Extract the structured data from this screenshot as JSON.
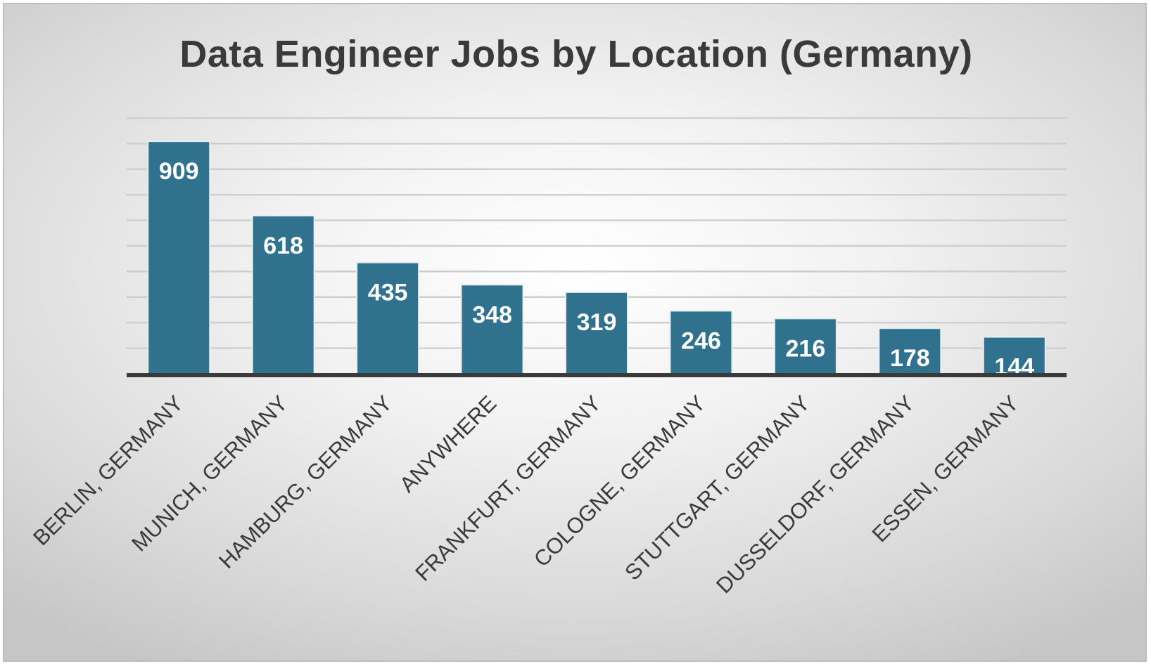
{
  "chart_data": {
    "type": "bar",
    "title": "Data Engineer Jobs by Location (Germany)",
    "categories": [
      "BERLIN, GERMANY",
      "MUNICH, GERMANY",
      "HAMBURG, GERMANY",
      "ANYWHERE",
      "FRANKFURT, GERMANY",
      "COLOGNE, GERMANY",
      "STUTTGART, GERMANY",
      "DUSSELDORF, GERMANY",
      "ESSEN, GERMANY"
    ],
    "values": [
      909,
      618,
      435,
      348,
      319,
      246,
      216,
      178,
      144
    ],
    "xlabel": "",
    "ylabel": "",
    "ylim": [
      0,
      1000
    ],
    "grid": true,
    "legend": "none",
    "data_labels": "inside-end",
    "colors": {
      "bar": "#30728e",
      "bar_edge": "#e6eef2",
      "gridline": "#cfcfcf",
      "axis": "#3a3a3a",
      "title": "#3a3a3a",
      "bar_label": "#ffffff"
    }
  }
}
